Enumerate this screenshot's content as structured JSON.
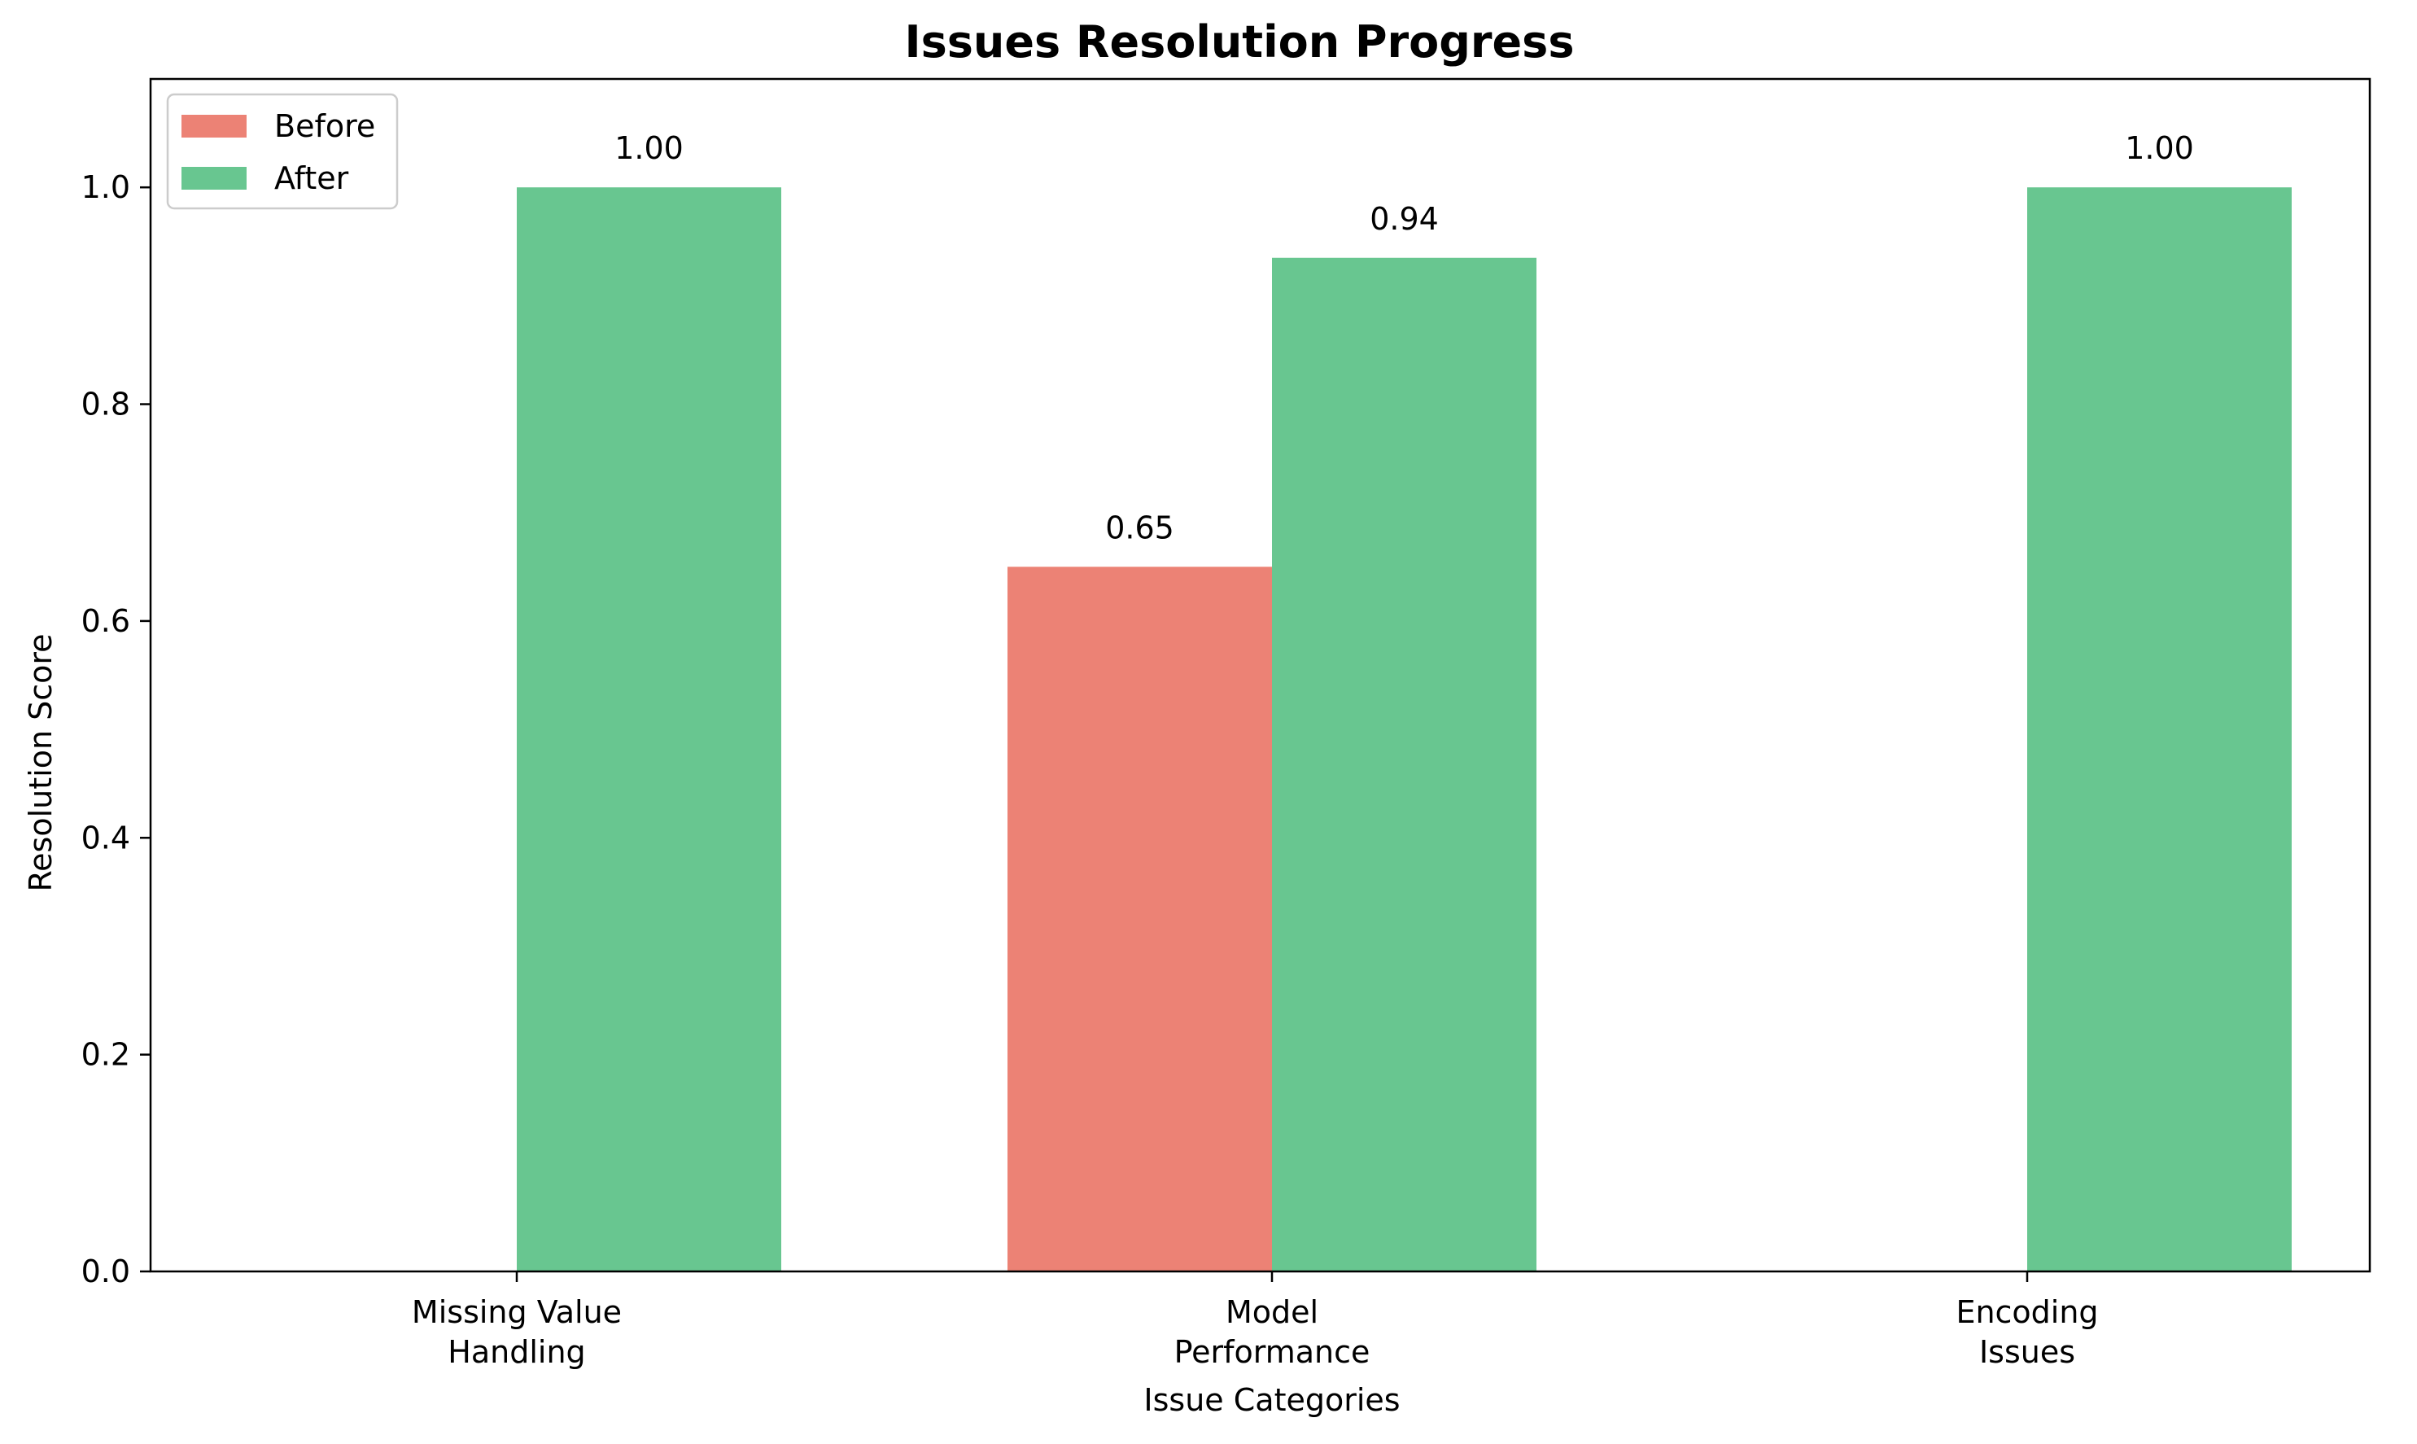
{
  "chart_data": {
    "type": "bar",
    "title": "Issues Resolution Progress",
    "xlabel": "Issue Categories",
    "ylabel": "Resolution Score",
    "categories": [
      [
        "Missing Value",
        "Handling"
      ],
      [
        "Model",
        "Performance"
      ],
      [
        "Encoding",
        "Issues"
      ]
    ],
    "series": [
      {
        "name": "Before",
        "color": "#ec8275",
        "values": [
          0,
          0.65,
          0
        ],
        "labels": [
          "",
          "0.65",
          ""
        ]
      },
      {
        "name": "After",
        "color": "#68c690",
        "values": [
          1.0,
          0.935,
          1.0
        ],
        "labels": [
          "1.00",
          "0.94",
          "1.00"
        ]
      }
    ],
    "ylim": [
      0,
      1.1
    ],
    "yticks": [
      0.0,
      0.2,
      0.4,
      0.6,
      0.8,
      1.0
    ],
    "ytick_labels": [
      "0.0",
      "0.2",
      "0.4",
      "0.6",
      "0.8",
      "1.0"
    ],
    "grid": false,
    "legend_position": "top-left"
  }
}
